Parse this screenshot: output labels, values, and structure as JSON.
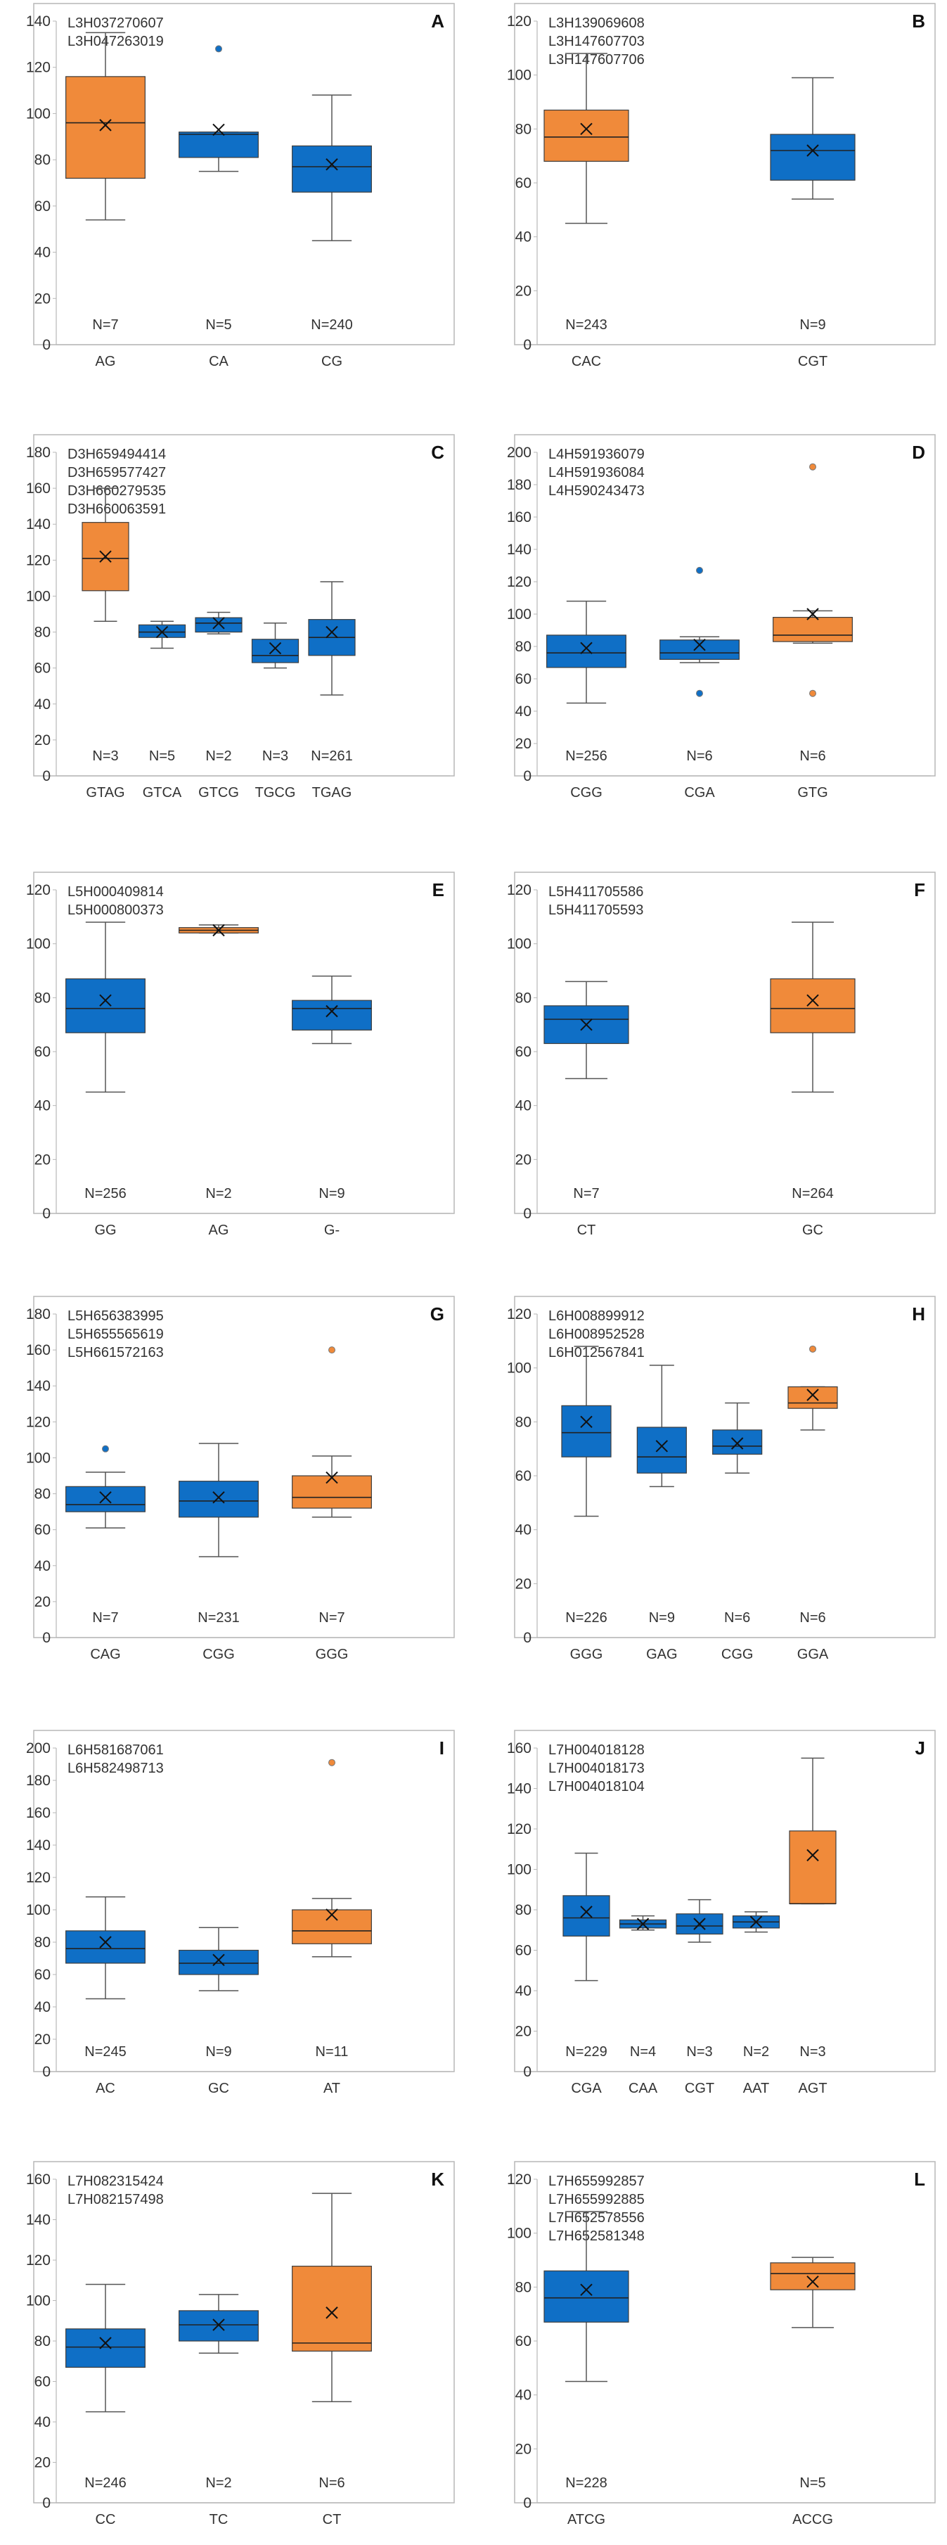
{
  "figure": {
    "colors": {
      "blue": "#0f6fc6",
      "orange": "#f08a3a",
      "frame": "#b7b7b7",
      "axis": "#333333"
    },
    "mean_marker": "×",
    "outlier_marker": "circle"
  },
  "chart_data": [
    {
      "type": "box",
      "panel": "A",
      "ylim": [
        0,
        140
      ],
      "yticks": [
        0,
        20,
        40,
        60,
        80,
        100,
        120,
        140
      ],
      "accessions": [
        "L3H037270607",
        "L3H047263019"
      ],
      "categories": [
        "AG",
        "CA",
        "CG"
      ],
      "boxes": [
        {
          "category": "AG",
          "n": "N=7",
          "color": "orange",
          "min": 54,
          "q1": 72,
          "median": 96,
          "q3": 116,
          "max": 135,
          "mean": 95,
          "outliers": []
        },
        {
          "category": "CA",
          "n": "N=5",
          "color": "blue",
          "min": 75,
          "q1": 81,
          "median": 91,
          "q3": 92,
          "max": 92,
          "mean": 93,
          "outliers": [
            128
          ]
        },
        {
          "category": "CG",
          "n": "N=240",
          "color": "blue",
          "min": 45,
          "q1": 66,
          "median": 77,
          "q3": 86,
          "max": 108,
          "mean": 78,
          "outliers": []
        }
      ]
    },
    {
      "type": "box",
      "panel": "B",
      "ylim": [
        0,
        120
      ],
      "yticks": [
        0,
        20,
        40,
        60,
        80,
        100,
        120
      ],
      "accessions": [
        "L3H139069608",
        "L3H147607703",
        "L3H147607706"
      ],
      "categories": [
        "CAC",
        "CGT"
      ],
      "boxes": [
        {
          "category": "CAC",
          "n": "N=243",
          "color": "orange",
          "min": 45,
          "q1": 68,
          "median": 77,
          "q3": 87,
          "max": 108,
          "mean": 80,
          "outliers": []
        },
        {
          "category": "CGT",
          "n": "N=9",
          "color": "blue",
          "min": 54,
          "q1": 61,
          "median": 72,
          "q3": 78,
          "max": 99,
          "mean": 72,
          "outliers": []
        }
      ]
    },
    {
      "type": "box",
      "panel": "C",
      "ylim": [
        0,
        180
      ],
      "yticks": [
        0,
        20,
        40,
        60,
        80,
        100,
        120,
        140,
        160,
        180
      ],
      "accessions": [
        "D3H659494414",
        "D3H659577427",
        "D3H660279535",
        "D3H660063591"
      ],
      "categories": [
        "GTAG",
        "GTCA",
        "GTCG",
        "TGCG",
        "TGAG"
      ],
      "boxes": [
        {
          "category": "GTAG",
          "n": "N=3",
          "color": "orange",
          "min": 86,
          "q1": 103,
          "median": 121,
          "q3": 141,
          "max": 160,
          "mean": 122,
          "outliers": []
        },
        {
          "category": "GTCA",
          "n": "N=5",
          "color": "blue",
          "min": 71,
          "q1": 77,
          "median": 80,
          "q3": 84,
          "max": 86,
          "mean": 80,
          "outliers": []
        },
        {
          "category": "GTCG",
          "n": "N=2",
          "color": "blue",
          "min": 79,
          "q1": 80,
          "median": 85,
          "q3": 88,
          "max": 91,
          "mean": 85,
          "outliers": []
        },
        {
          "category": "TGCG",
          "n": "N=3",
          "color": "blue",
          "min": 60,
          "q1": 63,
          "median": 67,
          "q3": 76,
          "max": 85,
          "mean": 71,
          "outliers": []
        },
        {
          "category": "TGAG",
          "n": "N=261",
          "color": "blue",
          "min": 45,
          "q1": 67,
          "median": 77,
          "q3": 87,
          "max": 108,
          "mean": 80,
          "outliers": []
        }
      ]
    },
    {
      "type": "box",
      "panel": "D",
      "ylim": [
        0,
        200
      ],
      "yticks": [
        0,
        20,
        40,
        60,
        80,
        100,
        120,
        140,
        160,
        180,
        200
      ],
      "accessions": [
        "L4H591936079",
        "L4H591936084",
        "L4H590243473"
      ],
      "categories": [
        "CGG",
        "CGA",
        "GTG"
      ],
      "boxes": [
        {
          "category": "CGG",
          "n": "N=256",
          "color": "blue",
          "min": 45,
          "q1": 67,
          "median": 76,
          "q3": 87,
          "max": 108,
          "mean": 79,
          "outliers": []
        },
        {
          "category": "CGA",
          "n": "N=6",
          "color": "blue",
          "min": 70,
          "q1": 72,
          "median": 76,
          "q3": 84,
          "max": 86,
          "mean": 81,
          "outliers": [
            127,
            51
          ]
        },
        {
          "category": "GTG",
          "n": "N=6",
          "color": "orange",
          "min": 82,
          "q1": 83,
          "median": 87,
          "q3": 98,
          "max": 102,
          "mean": 100,
          "outliers": [
            191,
            51
          ]
        }
      ]
    },
    {
      "type": "box",
      "panel": "E",
      "ylim": [
        0,
        120
      ],
      "yticks": [
        0,
        20,
        40,
        60,
        80,
        100,
        120
      ],
      "accessions": [
        "L5H000409814",
        "L5H000800373"
      ],
      "categories": [
        "GG",
        "AG",
        "G-"
      ],
      "boxes": [
        {
          "category": "GG",
          "n": "N=256",
          "color": "blue",
          "min": 45,
          "q1": 67,
          "median": 76,
          "q3": 87,
          "max": 108,
          "mean": 79,
          "outliers": []
        },
        {
          "category": "AG",
          "n": "N=2",
          "color": "orange",
          "min": 104,
          "q1": 104,
          "median": 105,
          "q3": 106,
          "max": 107,
          "mean": 105,
          "outliers": []
        },
        {
          "category": "G-",
          "n": "N=9",
          "color": "blue",
          "min": 63,
          "q1": 68,
          "median": 76,
          "q3": 79,
          "max": 88,
          "mean": 75,
          "outliers": []
        }
      ]
    },
    {
      "type": "box",
      "panel": "F",
      "ylim": [
        0,
        120
      ],
      "yticks": [
        0,
        20,
        40,
        60,
        80,
        100,
        120
      ],
      "accessions": [
        "L5H411705586",
        "L5H411705593"
      ],
      "categories": [
        "CT",
        "GC"
      ],
      "boxes": [
        {
          "category": "CT",
          "n": "N=7",
          "color": "blue",
          "min": 50,
          "q1": 63,
          "median": 72,
          "q3": 77,
          "max": 86,
          "mean": 70,
          "outliers": []
        },
        {
          "category": "GC",
          "n": "N=264",
          "color": "orange",
          "min": 45,
          "q1": 67,
          "median": 76,
          "q3": 87,
          "max": 108,
          "mean": 79,
          "outliers": []
        }
      ]
    },
    {
      "type": "box",
      "panel": "G",
      "ylim": [
        0,
        180
      ],
      "yticks": [
        0,
        20,
        40,
        60,
        80,
        100,
        120,
        140,
        160,
        180
      ],
      "accessions": [
        "L5H656383995",
        "L5H655565619",
        "L5H661572163"
      ],
      "categories": [
        "CAG",
        "CGG",
        "GGG"
      ],
      "boxes": [
        {
          "category": "CAG",
          "n": "N=7",
          "color": "blue",
          "min": 61,
          "q1": 70,
          "median": 74,
          "q3": 84,
          "max": 92,
          "mean": 78,
          "outliers": [
            105
          ]
        },
        {
          "category": "CGG",
          "n": "N=231",
          "color": "blue",
          "min": 45,
          "q1": 67,
          "median": 76,
          "q3": 87,
          "max": 108,
          "mean": 78,
          "outliers": []
        },
        {
          "category": "GGG",
          "n": "N=7",
          "color": "orange",
          "min": 67,
          "q1": 72,
          "median": 78,
          "q3": 90,
          "max": 101,
          "mean": 89,
          "outliers": [
            160
          ]
        }
      ]
    },
    {
      "type": "box",
      "panel": "H",
      "ylim": [
        0,
        120
      ],
      "yticks": [
        0,
        20,
        40,
        60,
        80,
        100,
        120
      ],
      "accessions": [
        "L6H008899912",
        "L6H008952528",
        "L6H012567841"
      ],
      "categories": [
        "GGG",
        "GAG",
        "CGG",
        "GGA"
      ],
      "boxes": [
        {
          "category": "GGG",
          "n": "N=226",
          "color": "blue",
          "min": 45,
          "q1": 67,
          "median": 76,
          "q3": 86,
          "max": 108,
          "mean": 80,
          "outliers": []
        },
        {
          "category": "GAG",
          "n": "N=9",
          "color": "blue",
          "min": 56,
          "q1": 61,
          "median": 67,
          "q3": 78,
          "max": 101,
          "mean": 71,
          "outliers": []
        },
        {
          "category": "CGG",
          "n": "N=6",
          "color": "blue",
          "min": 61,
          "q1": 68,
          "median": 71,
          "q3": 77,
          "max": 87,
          "mean": 72,
          "outliers": []
        },
        {
          "category": "GGA",
          "n": "N=6",
          "color": "orange",
          "min": 77,
          "q1": 85,
          "median": 87,
          "q3": 93,
          "max": 93,
          "mean": 90,
          "outliers": [
            107
          ]
        }
      ]
    },
    {
      "type": "box",
      "panel": "I",
      "ylim": [
        0,
        200
      ],
      "yticks": [
        0,
        20,
        40,
        60,
        80,
        100,
        120,
        140,
        160,
        180,
        200
      ],
      "accessions": [
        "L6H581687061",
        "L6H582498713"
      ],
      "categories": [
        "AC",
        "GC",
        "AT"
      ],
      "boxes": [
        {
          "category": "AC",
          "n": "N=245",
          "color": "blue",
          "min": 45,
          "q1": 67,
          "median": 76,
          "q3": 87,
          "max": 108,
          "mean": 80,
          "outliers": []
        },
        {
          "category": "GC",
          "n": "N=9",
          "color": "blue",
          "min": 50,
          "q1": 60,
          "median": 67,
          "q3": 75,
          "max": 89,
          "mean": 69,
          "outliers": []
        },
        {
          "category": "AT",
          "n": "N=11",
          "color": "orange",
          "min": 71,
          "q1": 79,
          "median": 87,
          "q3": 100,
          "max": 107,
          "mean": 97,
          "outliers": [
            191
          ]
        }
      ]
    },
    {
      "type": "box",
      "panel": "J",
      "ylim": [
        0,
        160
      ],
      "yticks": [
        0,
        20,
        40,
        60,
        80,
        100,
        120,
        140,
        160
      ],
      "accessions": [
        "L7H004018128",
        "L7H004018173",
        "L7H004018104"
      ],
      "categories": [
        "CGA",
        "CAA",
        "CGT",
        "AAT",
        "AGT"
      ],
      "boxes": [
        {
          "category": "CGA",
          "n": "N=229",
          "color": "blue",
          "min": 45,
          "q1": 67,
          "median": 76,
          "q3": 87,
          "max": 108,
          "mean": 79,
          "outliers": []
        },
        {
          "category": "CAA",
          "n": "N=4",
          "color": "blue",
          "min": 70,
          "q1": 71,
          "median": 73,
          "q3": 75,
          "max": 77,
          "mean": 73,
          "outliers": []
        },
        {
          "category": "CGT",
          "n": "N=3",
          "color": "blue",
          "min": 64,
          "q1": 68,
          "median": 72,
          "q3": 78,
          "max": 85,
          "mean": 73,
          "outliers": []
        },
        {
          "category": "AAT",
          "n": "N=2",
          "color": "blue",
          "min": 69,
          "q1": 71,
          "median": 74,
          "q3": 77,
          "max": 79,
          "mean": 74,
          "outliers": []
        },
        {
          "category": "AGT",
          "n": "N=3",
          "color": "orange",
          "min": 83,
          "q1": 83,
          "median": 83,
          "q3": 119,
          "max": 155,
          "mean": 107,
          "outliers": []
        }
      ]
    },
    {
      "type": "box",
      "panel": "K",
      "ylim": [
        0,
        160
      ],
      "yticks": [
        0,
        20,
        40,
        60,
        80,
        100,
        120,
        140,
        160
      ],
      "accessions": [
        "L7H082315424",
        "L7H082157498"
      ],
      "categories": [
        "CC",
        "TC",
        "CT"
      ],
      "boxes": [
        {
          "category": "CC",
          "n": "N=246",
          "color": "blue",
          "min": 45,
          "q1": 67,
          "median": 77,
          "q3": 86,
          "max": 108,
          "mean": 79,
          "outliers": []
        },
        {
          "category": "TC",
          "n": "N=2",
          "color": "blue",
          "min": 74,
          "q1": 80,
          "median": 88,
          "q3": 95,
          "max": 103,
          "mean": 88,
          "outliers": []
        },
        {
          "category": "CT",
          "n": "N=6",
          "color": "orange",
          "min": 50,
          "q1": 75,
          "median": 79,
          "q3": 117,
          "max": 153,
          "mean": 94,
          "outliers": []
        }
      ]
    },
    {
      "type": "box",
      "panel": "L",
      "ylim": [
        0,
        120
      ],
      "yticks": [
        0,
        20,
        40,
        60,
        80,
        100,
        120
      ],
      "accessions": [
        "L7H655992857",
        "L7H655992885",
        "L7H652578556",
        "L7H652581348"
      ],
      "categories": [
        "ATCG",
        "ACCG"
      ],
      "boxes": [
        {
          "category": "ATCG",
          "n": "N=228",
          "color": "blue",
          "min": 45,
          "q1": 67,
          "median": 76,
          "q3": 86,
          "max": 108,
          "mean": 79,
          "outliers": []
        },
        {
          "category": "ACCG",
          "n": "N=5",
          "color": "orange",
          "min": 65,
          "q1": 79,
          "median": 85,
          "q3": 89,
          "max": 91,
          "mean": 82,
          "outliers": []
        }
      ]
    }
  ]
}
